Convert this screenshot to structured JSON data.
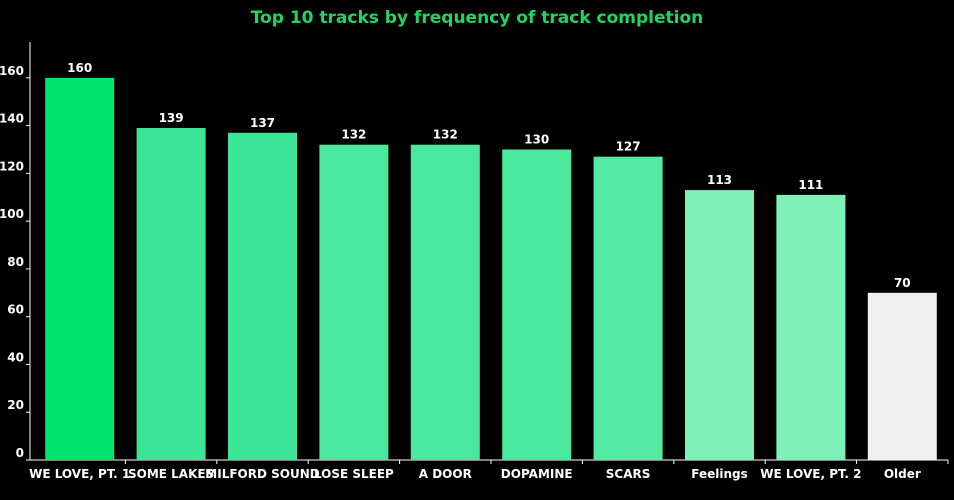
{
  "chart_data": {
    "type": "bar",
    "title": "Top 10 tracks by frequency of track completion",
    "xlabel": "",
    "ylabel": "",
    "categories": [
      "WE LOVE, PT. 1",
      "SOME LAKES",
      "MILFORD SOUND",
      "LOSE SLEEP",
      "A DOOR",
      "DOPAMINE",
      "SCARS",
      "Feelings",
      "WE LOVE, PT. 2",
      "Older"
    ],
    "values": [
      160,
      139,
      137,
      132,
      132,
      130,
      127,
      113,
      111,
      70
    ],
    "bar_colors": [
      "#00e46e",
      "#3ce596",
      "#3ce596",
      "#4ae89c",
      "#4ae89c",
      "#4ae89c",
      "#55eaa2",
      "#7ef0b8",
      "#7ef0b8",
      "#f0f0f0"
    ],
    "ylim": [
      0,
      175
    ],
    "yticks": [
      0,
      20,
      40,
      60,
      80,
      100,
      120,
      140,
      160
    ],
    "grid": false,
    "legend": "none",
    "colors": {
      "background": "#000000",
      "title": "#1ed760",
      "text": "#ffffff",
      "axis": "#ffffff"
    }
  }
}
